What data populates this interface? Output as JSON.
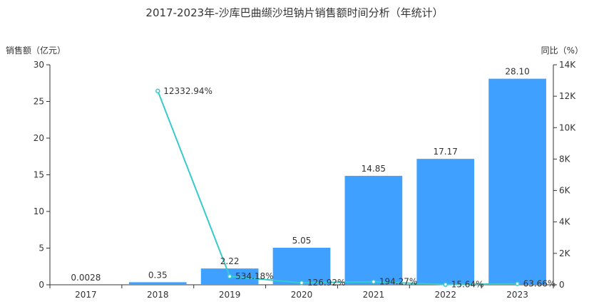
{
  "chart_data": {
    "type": "bar",
    "title": "2017-2023年-沙库巴曲缬沙坦钠片销售额时间分析（年统计）",
    "categories": [
      "2017",
      "2018",
      "2019",
      "2020",
      "2021",
      "2022",
      "2023"
    ],
    "y_left_label": "销售额（亿元）",
    "y_right_label": "同比（%）",
    "y_left_ticks": [
      "0",
      "5",
      "10",
      "15",
      "20",
      "25",
      "30"
    ],
    "y_right_ticks": [
      "0",
      "2K",
      "4K",
      "6K",
      "8K",
      "10K",
      "12K",
      "14K"
    ],
    "y_left_range": [
      0,
      30
    ],
    "y_right_range": [
      0,
      14000
    ],
    "bar_color": "#3FA0FF",
    "line_color": "#36CBCB",
    "series": [
      {
        "type": "bar",
        "axis": "left",
        "values": [
          0.0028,
          0.35,
          2.22,
          5.05,
          14.85,
          17.17,
          28.1
        ],
        "labels": [
          "0.0028",
          "0.35",
          "2.22",
          "5.05",
          "14.85",
          "17.17",
          "28.10"
        ]
      },
      {
        "type": "line",
        "axis": "right",
        "values": [
          null,
          12332.94,
          534.18,
          126.92,
          194.27,
          15.64,
          63.66
        ],
        "labels": [
          "",
          "12332.94%",
          "534.18%",
          "126.92%",
          "194.27%",
          "15.64%",
          "63.66%"
        ]
      }
    ]
  }
}
